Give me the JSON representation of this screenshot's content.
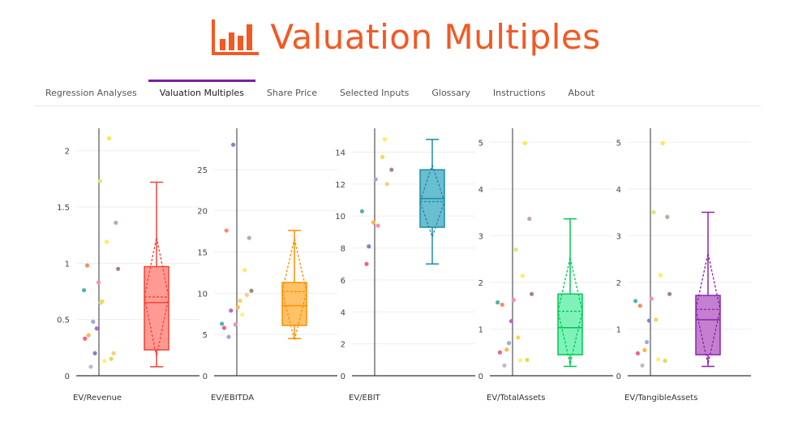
{
  "header": {
    "title": "Valuation Multiples",
    "icon": "bar-chart-icon",
    "accent": "#f15a24"
  },
  "tabs": [
    {
      "label": "Regression Analyses",
      "active": false
    },
    {
      "label": "Valuation Multiples",
      "active": true
    },
    {
      "label": "Share Price",
      "active": false
    },
    {
      "label": "Selected Inputs",
      "active": false
    },
    {
      "label": "Glossary",
      "active": false
    },
    {
      "label": "Instructions",
      "active": false
    },
    {
      "label": "About",
      "active": false
    }
  ],
  "chart_data": [
    {
      "type": "box",
      "xlabel": "EV/Revenue",
      "color": "#f44336",
      "fill": "#ff8a80",
      "ylim": [
        0,
        2.2
      ],
      "yticks": [
        0,
        0.5,
        1,
        1.5,
        2
      ],
      "ytick_labels": [
        "0",
        "0.5",
        "1",
        "1.5",
        "2"
      ],
      "box": {
        "min": 0.08,
        "q1": 0.23,
        "median": 0.65,
        "q3": 0.97,
        "max": 1.72,
        "mean": 0.7,
        "mean_sd_low": 0.17,
        "mean_sd_high": 1.23
      },
      "points": [
        {
          "x": 0.1,
          "y": 0.76,
          "color": "#4db6ac"
        },
        {
          "x": 0.12,
          "y": 0.33,
          "color": "#f06292"
        },
        {
          "x": 0.17,
          "y": 0.98,
          "color": "#ff8a65"
        },
        {
          "x": 0.2,
          "y": 0.36,
          "color": "#ffb74d"
        },
        {
          "x": 0.25,
          "y": 0.08,
          "color": "#bdbdbd"
        },
        {
          "x": 0.3,
          "y": 0.48,
          "color": "#9fa8da"
        },
        {
          "x": 0.34,
          "y": 0.2,
          "color": "#7986cb"
        },
        {
          "x": 0.38,
          "y": 0.42,
          "color": "#ba68c8"
        },
        {
          "x": 0.42,
          "y": 0.83,
          "color": "#f48fb1"
        },
        {
          "x": 0.45,
          "y": 1.73,
          "color": "#dce775"
        },
        {
          "x": 0.47,
          "y": 0.65,
          "color": "#c5e1a5"
        },
        {
          "x": 0.5,
          "y": 0.66,
          "color": "#ffd54f"
        },
        {
          "x": 0.55,
          "y": 0.13,
          "color": "#fff176"
        },
        {
          "x": 0.6,
          "y": 1.19,
          "color": "#ffee58"
        },
        {
          "x": 0.65,
          "y": 2.11,
          "color": "#ffeb3b"
        },
        {
          "x": 0.7,
          "y": 0.15,
          "color": "#d4e157"
        },
        {
          "x": 0.75,
          "y": 0.2,
          "color": "#ffcc80"
        },
        {
          "x": 0.8,
          "y": 1.36,
          "color": "#bcaaa4"
        },
        {
          "x": 0.85,
          "y": 0.95,
          "color": "#a1887f"
        }
      ]
    },
    {
      "type": "box",
      "xlabel": "EV/EBITDA",
      "color": "#ff8f00",
      "fill": "#ffb74d",
      "ylim": [
        0,
        30
      ],
      "yticks": [
        0,
        5,
        10,
        15,
        20,
        25
      ],
      "ytick_labels": [
        "0",
        "5",
        "10",
        "15",
        "20",
        "25"
      ],
      "box": {
        "min": 4.5,
        "q1": 6.1,
        "median": 8.5,
        "q3": 11.3,
        "max": 17.6,
        "mean": 10.2,
        "mean_sd_low": 4.3,
        "mean_sd_high": 16.6
      },
      "points": [
        {
          "x": 0.1,
          "y": 6.3,
          "color": "#4db6ac"
        },
        {
          "x": 0.15,
          "y": 5.8,
          "color": "#f06292"
        },
        {
          "x": 0.2,
          "y": 17.6,
          "color": "#ff8a65"
        },
        {
          "x": 0.25,
          "y": 4.7,
          "color": "#9fa8da"
        },
        {
          "x": 0.3,
          "y": 7.9,
          "color": "#ba68c8"
        },
        {
          "x": 0.35,
          "y": 28.0,
          "color": "#7986cb"
        },
        {
          "x": 0.4,
          "y": 6.2,
          "color": "#f48fb1"
        },
        {
          "x": 0.45,
          "y": 8.3,
          "color": "#ffb74d"
        },
        {
          "x": 0.5,
          "y": 9.1,
          "color": "#ffd54f"
        },
        {
          "x": 0.55,
          "y": 7.4,
          "color": "#fff176"
        },
        {
          "x": 0.6,
          "y": 12.8,
          "color": "#ffee58"
        },
        {
          "x": 0.65,
          "y": 9.8,
          "color": "#ffcc80"
        },
        {
          "x": 0.7,
          "y": 16.7,
          "color": "#bcaaa4"
        },
        {
          "x": 0.75,
          "y": 10.3,
          "color": "#a1887f"
        }
      ]
    },
    {
      "type": "box",
      "xlabel": "EV/EBIT",
      "color": "#1f8ba6",
      "fill": "#4fb3c8",
      "ylim": [
        0,
        15.5
      ],
      "yticks": [
        0,
        2,
        4,
        6,
        8,
        10,
        12,
        14
      ],
      "ytick_labels": [
        "0",
        "2",
        "4",
        "6",
        "8",
        "10",
        "12",
        "14"
      ],
      "box": {
        "min": 7.0,
        "q1": 9.3,
        "median": 11.1,
        "q3": 12.9,
        "max": 14.8,
        "mean": 10.9,
        "mean_sd_low": 8.7,
        "mean_sd_high": 13.2
      },
      "points": [
        {
          "x": 0.15,
          "y": 10.3,
          "color": "#4db6ac"
        },
        {
          "x": 0.25,
          "y": 7.0,
          "color": "#f06292"
        },
        {
          "x": 0.3,
          "y": 8.1,
          "color": "#7986cb"
        },
        {
          "x": 0.4,
          "y": 9.6,
          "color": "#ffb74d"
        },
        {
          "x": 0.45,
          "y": 12.3,
          "color": "#9fa8da"
        },
        {
          "x": 0.5,
          "y": 9.4,
          "color": "#f48fb1"
        },
        {
          "x": 0.6,
          "y": 13.7,
          "color": "#ffd54f"
        },
        {
          "x": 0.65,
          "y": 14.8,
          "color": "#ffee58"
        },
        {
          "x": 0.7,
          "y": 12.0,
          "color": "#ffcc80"
        },
        {
          "x": 0.8,
          "y": 12.9,
          "color": "#a1887f"
        }
      ]
    },
    {
      "type": "box",
      "xlabel": "EV/TotalAssets",
      "color": "#00c853",
      "fill": "#69f0ae",
      "ylim": [
        0,
        5.3
      ],
      "yticks": [
        0,
        1,
        2,
        3,
        4,
        5
      ],
      "ytick_labels": [
        "0",
        "1",
        "2",
        "3",
        "4",
        "5"
      ],
      "box": {
        "min": 0.2,
        "q1": 0.45,
        "median": 1.03,
        "q3": 1.75,
        "max": 3.36,
        "mean": 1.38,
        "mean_sd_low": 0.25,
        "mean_sd_high": 2.52
      },
      "points": [
        {
          "x": 0.1,
          "y": 1.57,
          "color": "#4db6ac"
        },
        {
          "x": 0.15,
          "y": 0.5,
          "color": "#f06292"
        },
        {
          "x": 0.2,
          "y": 1.52,
          "color": "#ff8a65"
        },
        {
          "x": 0.25,
          "y": 0.22,
          "color": "#bdbdbd"
        },
        {
          "x": 0.3,
          "y": 0.56,
          "color": "#ffb74d"
        },
        {
          "x": 0.35,
          "y": 0.7,
          "color": "#9fa8da"
        },
        {
          "x": 0.4,
          "y": 1.17,
          "color": "#ba68c8"
        },
        {
          "x": 0.45,
          "y": 1.62,
          "color": "#f48fb1"
        },
        {
          "x": 0.5,
          "y": 2.7,
          "color": "#dce775"
        },
        {
          "x": 0.55,
          "y": 0.82,
          "color": "#ffd54f"
        },
        {
          "x": 0.6,
          "y": 0.33,
          "color": "#fff176"
        },
        {
          "x": 0.65,
          "y": 2.14,
          "color": "#ffee58"
        },
        {
          "x": 0.7,
          "y": 4.98,
          "color": "#ffeb3b"
        },
        {
          "x": 0.75,
          "y": 0.34,
          "color": "#d4e157"
        },
        {
          "x": 0.8,
          "y": 3.36,
          "color": "#bcaaa4"
        },
        {
          "x": 0.85,
          "y": 1.75,
          "color": "#a1887f"
        }
      ]
    },
    {
      "type": "box",
      "xlabel": "EV/TangibleAssets",
      "color": "#8e24aa",
      "fill": "#ba68c8",
      "ylim": [
        0,
        5.3
      ],
      "yticks": [
        0,
        1,
        2,
        3,
        4,
        5
      ],
      "ytick_labels": [
        "0",
        "1",
        "2",
        "3",
        "4",
        "5"
      ],
      "box": {
        "min": 0.2,
        "q1": 0.45,
        "median": 1.2,
        "q3": 1.72,
        "max": 3.5,
        "mean": 1.42,
        "mean_sd_low": 0.25,
        "mean_sd_high": 2.62
      },
      "points": [
        {
          "x": 0.1,
          "y": 1.6,
          "color": "#4db6ac"
        },
        {
          "x": 0.15,
          "y": 0.48,
          "color": "#f06292"
        },
        {
          "x": 0.2,
          "y": 1.5,
          "color": "#ff8a65"
        },
        {
          "x": 0.25,
          "y": 0.22,
          "color": "#bdbdbd"
        },
        {
          "x": 0.3,
          "y": 0.55,
          "color": "#ffb74d"
        },
        {
          "x": 0.35,
          "y": 0.72,
          "color": "#9fa8da"
        },
        {
          "x": 0.4,
          "y": 1.18,
          "color": "#7986cb"
        },
        {
          "x": 0.45,
          "y": 1.65,
          "color": "#f48fb1"
        },
        {
          "x": 0.5,
          "y": 3.5,
          "color": "#dce775"
        },
        {
          "x": 0.55,
          "y": 1.2,
          "color": "#ffd54f"
        },
        {
          "x": 0.6,
          "y": 0.35,
          "color": "#fff176"
        },
        {
          "x": 0.65,
          "y": 2.15,
          "color": "#ffee58"
        },
        {
          "x": 0.7,
          "y": 4.98,
          "color": "#ffeb3b"
        },
        {
          "x": 0.75,
          "y": 0.32,
          "color": "#d4e157"
        },
        {
          "x": 0.8,
          "y": 3.4,
          "color": "#bcaaa4"
        },
        {
          "x": 0.85,
          "y": 1.75,
          "color": "#a1887f"
        }
      ]
    }
  ]
}
